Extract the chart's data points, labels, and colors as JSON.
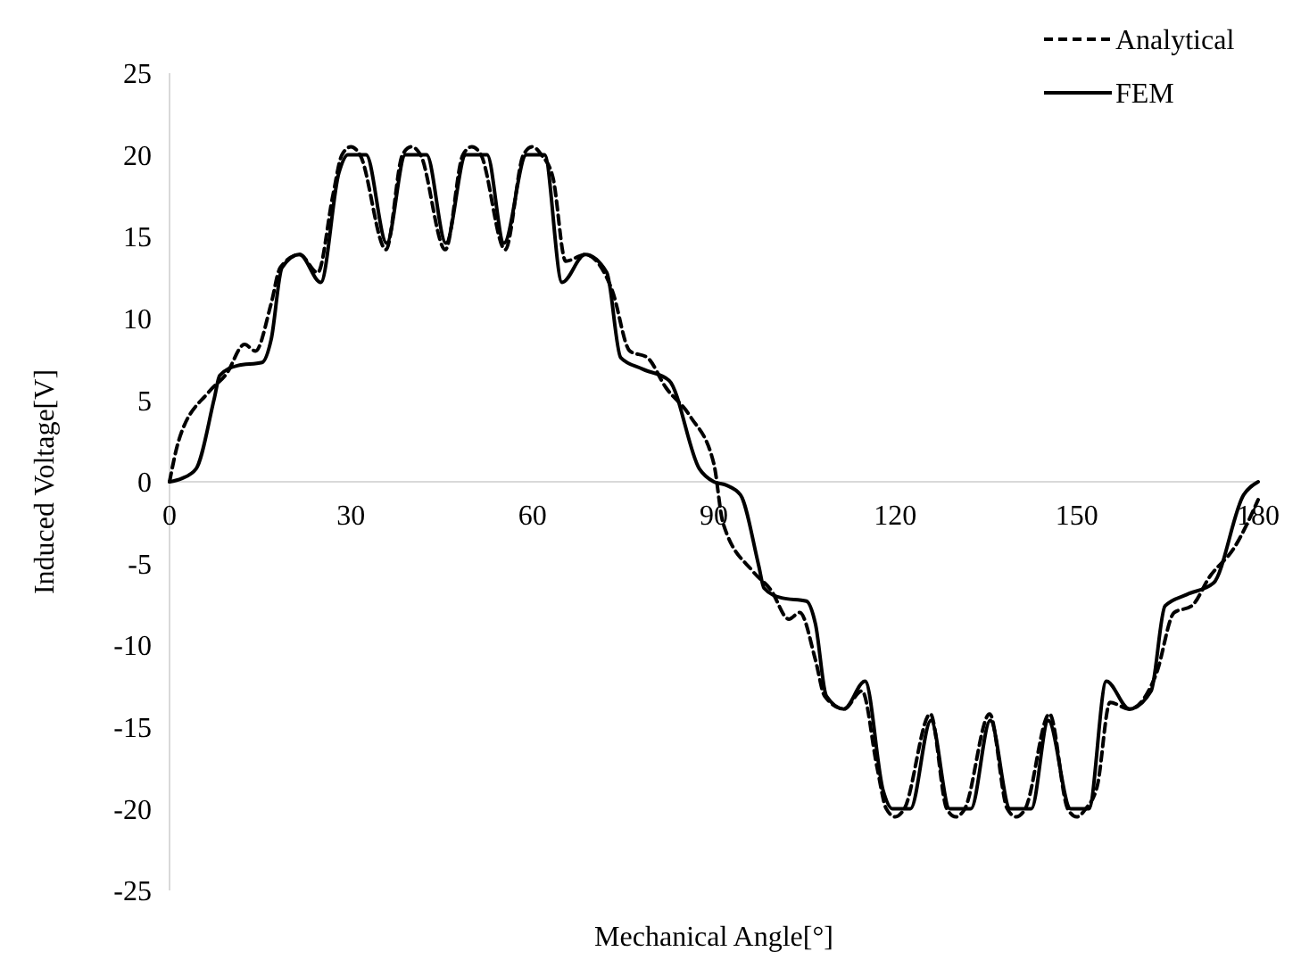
{
  "chart_data": {
    "type": "line",
    "xlabel": "Mechanical Angle[°]",
    "ylabel": "Induced Voltage[V]",
    "xlim": [
      0,
      180
    ],
    "xticks": [
      0,
      30,
      60,
      90,
      120,
      150,
      180
    ],
    "ylim": [
      -25,
      25
    ],
    "yticks": [
      -25,
      -20,
      -15,
      -10,
      -5,
      0,
      5,
      10,
      15,
      20,
      25
    ],
    "grid": false,
    "legend": "top right",
    "marker": "none",
    "series": [
      {
        "name": "Analytical",
        "color": "#000000",
        "line_style": "dashed",
        "x": [
          0,
          1.5,
          6.5,
          9.4,
          12.4,
          14.2,
          16.8,
          18.3,
          21.5,
          24.5,
          27,
          28.5,
          30,
          31.5,
          35.8,
          38.5,
          40,
          41.5,
          45.6,
          48.5,
          50,
          51.5,
          55.5,
          58.5,
          60,
          61.5,
          63.4,
          65.5,
          68.7,
          73.2,
          76.1,
          79,
          82,
          86.1,
          90,
          91.5,
          96.5,
          99.4,
          102.4,
          104.2,
          106.8,
          108.3,
          111.5,
          114.5,
          117,
          118.5,
          120,
          121.5,
          125.8,
          128.5,
          130,
          131.5,
          135.6,
          138.5,
          140,
          141.5,
          145.5,
          148.5,
          150,
          151.5,
          153.4,
          155.5,
          158.7,
          163.2,
          166.1,
          169,
          172,
          176.1,
          180
        ],
        "values": [
          0,
          2.5,
          5.5,
          6.6,
          8.4,
          8,
          10.9,
          13.1,
          13.9,
          12.8,
          17.5,
          20,
          20.5,
          20,
          14.2,
          20,
          20.5,
          20,
          14.2,
          20,
          20.5,
          20,
          14.2,
          20,
          20.5,
          20,
          18.6,
          13.5,
          13.9,
          11.7,
          8,
          7.6,
          5.8,
          4,
          1.1,
          -2.5,
          -5.5,
          -6.6,
          -8.4,
          -8,
          -10.9,
          -13.1,
          -13.9,
          -12.8,
          -17.5,
          -20,
          -20.5,
          -20,
          -14.2,
          -20,
          -20.5,
          -20,
          -14.2,
          -20,
          -20.5,
          -20,
          -14.2,
          -20,
          -20.5,
          -20,
          -18.6,
          -13.5,
          -13.9,
          -11.7,
          -8,
          -7.6,
          -5.8,
          -4,
          -1.1
        ]
      },
      {
        "name": "FEM",
        "color": "#000000",
        "line_style": "solid",
        "x": [
          0,
          2,
          4.4,
          7.4,
          8.3,
          11.2,
          15.3,
          16.8,
          18.6,
          21.5,
          25,
          28,
          29.5,
          32.5,
          35.9,
          39,
          42.5,
          45.7,
          49,
          52.5,
          55.3,
          59,
          62,
          64.9,
          68.7,
          72.3,
          74.6,
          78.2,
          82.6,
          87.6,
          90,
          92,
          94.4,
          97.4,
          98.3,
          101.2,
          105.3,
          106.8,
          108.6,
          111.5,
          115,
          118,
          119.5,
          122.5,
          125.9,
          129,
          132.5,
          135.7,
          139,
          142.5,
          145.3,
          149,
          152,
          154.9,
          158.7,
          162.3,
          164.6,
          168.2,
          172.6,
          177.6,
          180
        ],
        "values": [
          0,
          0.2,
          0.8,
          5.1,
          6.5,
          7.1,
          7.3,
          8.7,
          13.1,
          13.9,
          12.2,
          18.9,
          20,
          20,
          14.6,
          20,
          20,
          14.6,
          20,
          20,
          14.6,
          20,
          20,
          12.2,
          13.9,
          12.8,
          7.6,
          6.9,
          6.2,
          0.8,
          0,
          -0.2,
          -0.8,
          -5.1,
          -6.5,
          -7.1,
          -7.3,
          -8.7,
          -13.1,
          -13.9,
          -12.2,
          -18.9,
          -20,
          -20,
          -14.6,
          -20,
          -20,
          -14.6,
          -20,
          -20,
          -14.6,
          -20,
          -20,
          -12.2,
          -13.9,
          -12.8,
          -7.6,
          -6.9,
          -6.2,
          -0.8,
          0
        ]
      }
    ]
  }
}
